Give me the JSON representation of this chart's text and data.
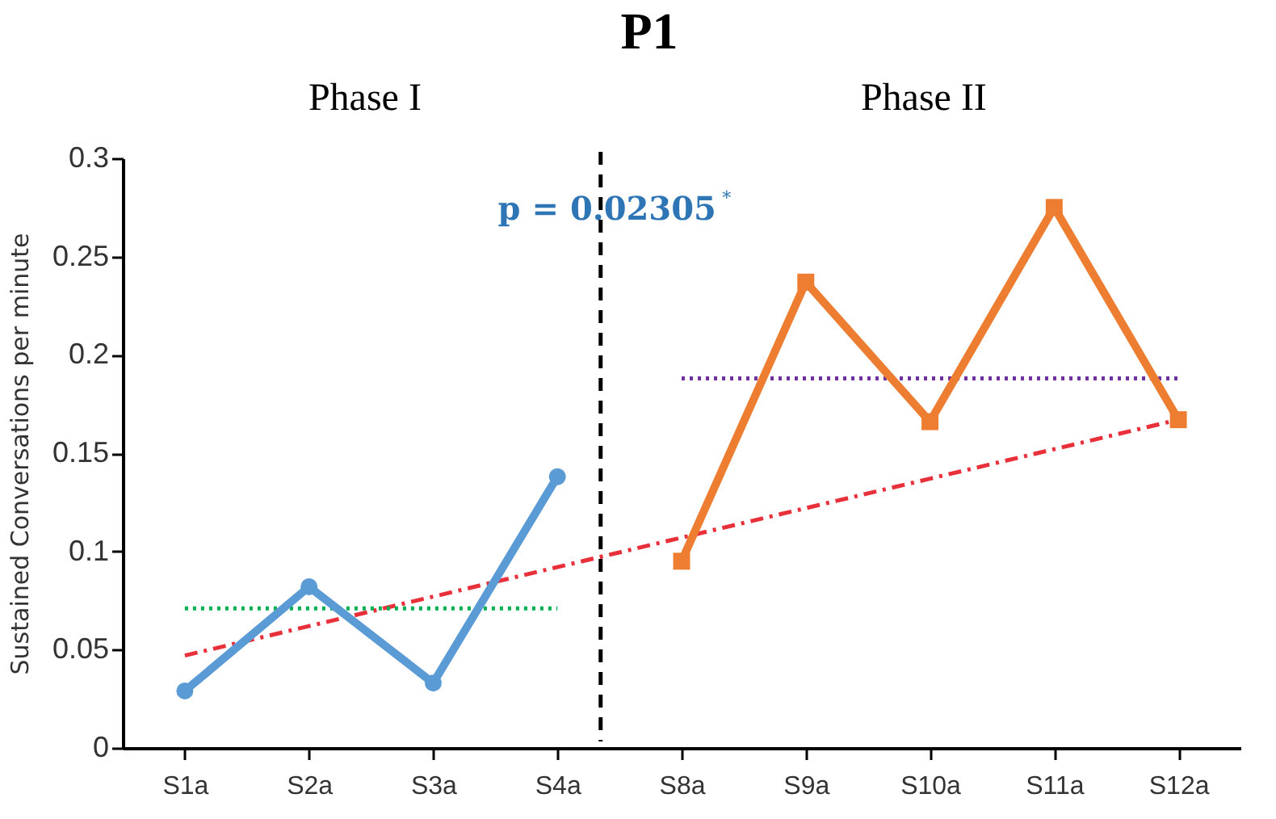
{
  "chart_data": {
    "type": "line",
    "title": "P1",
    "ylabel": "Sustained Conversations per minute",
    "categories": [
      "S1a",
      "S2a",
      "S3a",
      "S4a",
      "S8a",
      "S9a",
      "S10a",
      "S11a",
      "S12a"
    ],
    "ylim": [
      0,
      0.3
    ],
    "yticks": [
      0,
      0.05,
      0.1,
      0.15,
      0.2,
      0.25,
      0.3
    ],
    "grid": false,
    "series": [
      {
        "type": "line",
        "color": "#e8303a",
        "line_style": "dashed",
        "marker": "none",
        "values": [
          0.047,
          0.062,
          0.077,
          0.092,
          0.107,
          0.122,
          0.137,
          0.152,
          0.167
        ]
      },
      {
        "type": "line",
        "color": "#00b050",
        "line_style": "dotted",
        "marker": "none",
        "values": [
          0.071,
          0.071,
          0.071,
          0.071,
          null,
          null,
          null,
          null,
          null
        ]
      },
      {
        "type": "line",
        "color": "#7030a0",
        "line_style": "dotted",
        "marker": "none",
        "values": [
          null,
          null,
          null,
          null,
          0.188,
          0.188,
          0.188,
          0.188,
          0.188
        ]
      },
      {
        "type": "line",
        "color": "#5b9bd5",
        "line_style": "solid",
        "marker": "circle",
        "values": [
          0.029,
          0.082,
          0.033,
          0.138,
          null,
          null,
          null,
          null,
          null
        ]
      },
      {
        "type": "line",
        "color": "#ed7d31",
        "line_style": "solid",
        "marker": "square",
        "values": [
          null,
          null,
          null,
          null,
          0.095,
          0.237,
          0.166,
          0.275,
          0.167
        ]
      }
    ],
    "annotations": [
      "Phase I",
      "Phase II",
      "p = 0.02305$^{*}$"
    ]
  }
}
